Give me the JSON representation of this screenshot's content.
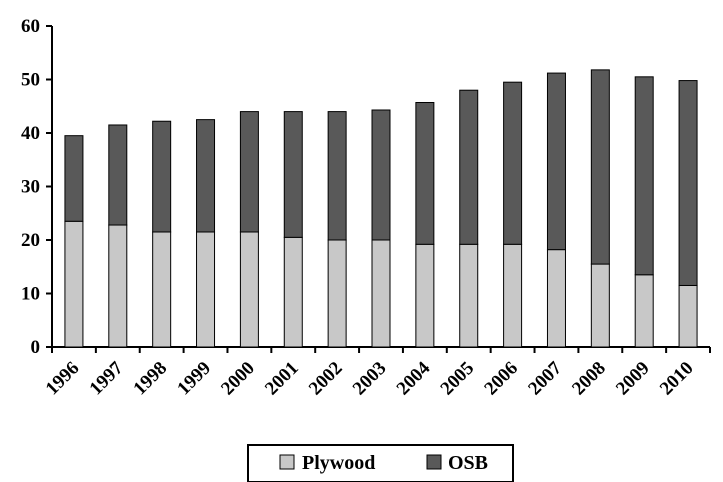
{
  "chart_data": {
    "type": "bar",
    "stacked": true,
    "categories": [
      "1996",
      "1997",
      "1998",
      "1999",
      "2000",
      "2001",
      "2002",
      "2003",
      "2004",
      "2005",
      "2006",
      "2007",
      "2008",
      "2009",
      "2010"
    ],
    "series": [
      {
        "name": "Plywood",
        "color": "#c8c8c8",
        "values": [
          23.5,
          22.8,
          21.5,
          21.5,
          21.5,
          20.5,
          20.0,
          20.0,
          19.2,
          19.2,
          19.2,
          18.2,
          15.5,
          13.5,
          11.5
        ]
      },
      {
        "name": "OSB",
        "color": "#595959",
        "values": [
          16.0,
          18.7,
          20.7,
          21.0,
          22.5,
          23.5,
          24.0,
          24.3,
          26.5,
          28.8,
          30.3,
          33.0,
          36.3,
          37.0,
          38.3
        ]
      }
    ],
    "ylim": [
      0,
      60
    ],
    "yticks": [
      "0",
      "10",
      "20",
      "30",
      "40",
      "50",
      "60"
    ],
    "grid": false,
    "legend_position": "bottom"
  }
}
